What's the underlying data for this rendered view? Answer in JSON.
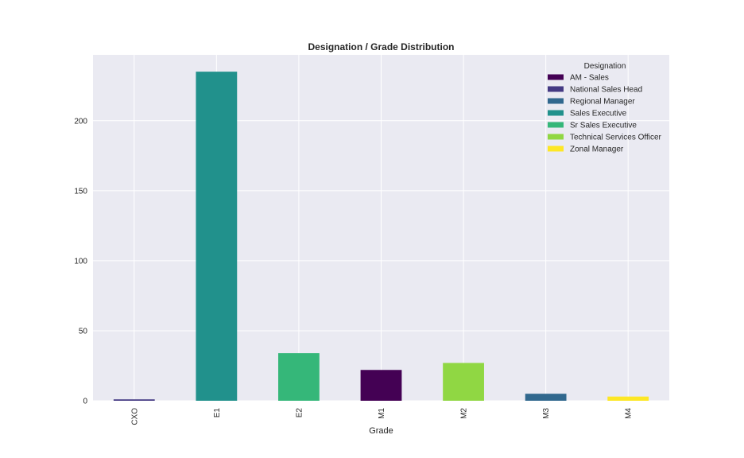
{
  "chart_data": {
    "type": "bar",
    "stacked": true,
    "title": "Designation / Grade Distribution",
    "xlabel": "Grade",
    "ylabel": "",
    "categories": [
      "CXO",
      "E1",
      "E2",
      "M1",
      "M2",
      "M3",
      "M4"
    ],
    "ylim": [
      0,
      247
    ],
    "yticks": [
      0,
      50,
      100,
      150,
      200
    ],
    "grid": true,
    "legend": {
      "title": "Designation",
      "placement": "top-right"
    },
    "series": [
      {
        "name": "AM - Sales",
        "color": "#440154",
        "values": [
          0,
          0,
          0,
          22,
          0,
          0,
          0
        ]
      },
      {
        "name": "National Sales Head",
        "color": "#443983",
        "values": [
          1,
          0,
          0,
          0,
          0,
          0,
          0
        ]
      },
      {
        "name": "Regional Manager",
        "color": "#31688e",
        "values": [
          0,
          0,
          0,
          0,
          0,
          5,
          0
        ]
      },
      {
        "name": "Sales Executive",
        "color": "#21918c",
        "values": [
          0,
          235,
          0,
          0,
          0,
          0,
          0
        ]
      },
      {
        "name": "Sr Sales Executive",
        "color": "#35b779",
        "values": [
          0,
          0,
          34,
          0,
          0,
          0,
          0
        ]
      },
      {
        "name": "Technical Services Officer",
        "color": "#90d743",
        "values": [
          0,
          0,
          0,
          0,
          27,
          0,
          0
        ]
      },
      {
        "name": "Zonal Manager",
        "color": "#fde725",
        "values": [
          0,
          0,
          0,
          0,
          0,
          0,
          3
        ]
      }
    ],
    "colors": {
      "plot_background": "#eaeaf2",
      "grid": "#ffffff",
      "text": "#262626"
    }
  }
}
